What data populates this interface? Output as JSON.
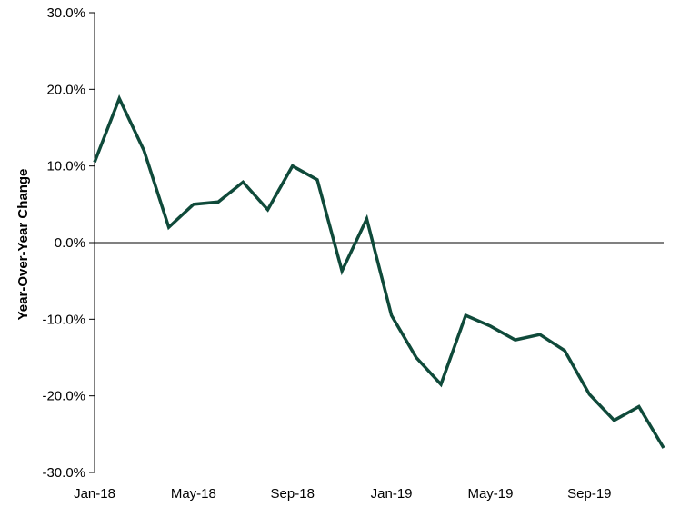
{
  "chart_data": {
    "type": "line",
    "title": "",
    "xlabel": "",
    "ylabel": "Year-Over-Year Change",
    "ylim": [
      -30,
      30
    ],
    "y_ticks": [
      30,
      20,
      10,
      0,
      -10,
      -20,
      -30
    ],
    "y_tick_labels": [
      "30.0%",
      "20.0%",
      "10.0%",
      "0.0%",
      "-10.0%",
      "-20.0%",
      "-30.0%"
    ],
    "x": [
      "Jan-18",
      "Feb-18",
      "Mar-18",
      "Apr-18",
      "May-18",
      "Jun-18",
      "Jul-18",
      "Aug-18",
      "Sep-18",
      "Oct-18",
      "Nov-18",
      "Dec-18",
      "Jan-19",
      "Feb-19",
      "Mar-19",
      "Apr-19",
      "May-19",
      "Jun-19",
      "Jul-19",
      "Aug-19",
      "Sep-19",
      "Oct-19",
      "Nov-19",
      "Dec-19"
    ],
    "x_tick_labels": [
      {
        "index": 0,
        "label": "Jan-18"
      },
      {
        "index": 4,
        "label": "May-18"
      },
      {
        "index": 8,
        "label": "Sep-18"
      },
      {
        "index": 12,
        "label": "Jan-19"
      },
      {
        "index": 16,
        "label": "May-19"
      },
      {
        "index": 20,
        "label": "Sep-19"
      }
    ],
    "series": [
      {
        "values": [
          10.5,
          18.8,
          12.0,
          2.0,
          5.0,
          5.3,
          7.9,
          4.3,
          10.0,
          8.2,
          -3.7,
          3.1,
          -9.5,
          -15.0,
          -18.5,
          -9.5,
          -10.9,
          -12.7,
          -12.0,
          -14.1,
          -19.8,
          -23.2,
          -21.4,
          -26.8
        ],
        "color": "#0f4a3a"
      }
    ],
    "grid": false,
    "legend": "none"
  }
}
